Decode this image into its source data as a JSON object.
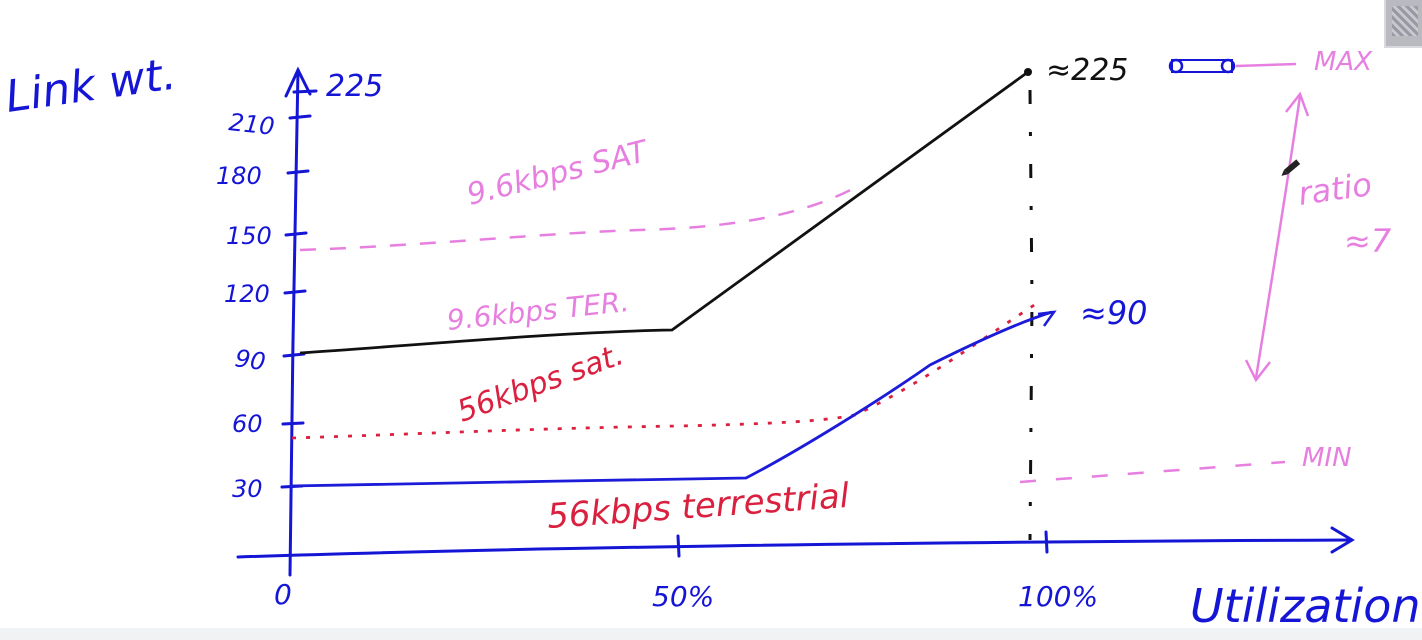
{
  "colors": {
    "axis": "#1515d6",
    "black": "#111111",
    "pink": "#e77fe0",
    "red": "#d9213f",
    "blue": "#1b1bd9"
  },
  "labels": {
    "y_title": "Link wt.",
    "x_title": "Utilization",
    "top_label": "225",
    "max": "MAX",
    "min": "MIN",
    "ratio": "ratio",
    "ratio_value": "≈7",
    "approx_225": "≈225",
    "approx_90": "≈90"
  },
  "chart_data": {
    "type": "line",
    "xlabel": "Utilization",
    "ylabel": "Link wt.",
    "x_ticks": [
      "0",
      "50%",
      "100%"
    ],
    "y_ticks": [
      "30",
      "60",
      "90",
      "120",
      "150",
      "180",
      "210"
    ],
    "ylim": [
      0,
      225
    ],
    "series": [
      {
        "name": "9.6kbps SAT",
        "style": "pink-dashed",
        "points": [
          [
            0,
            140
          ],
          [
            50,
            150
          ],
          [
            75,
            158
          ],
          [
            100,
            165
          ]
        ]
      },
      {
        "name": "9.6kbps TER.",
        "style": "black-solid",
        "points": [
          [
            0,
            90
          ],
          [
            50,
            95
          ],
          [
            100,
            225
          ]
        ]
      },
      {
        "name": "56kbps sat.",
        "style": "red-dotted",
        "points": [
          [
            0,
            50
          ],
          [
            50,
            56
          ],
          [
            75,
            60
          ],
          [
            100,
            112
          ]
        ]
      },
      {
        "name": "56kbps terrestrial",
        "style": "blue-solid",
        "points": [
          [
            0,
            30
          ],
          [
            60,
            32
          ],
          [
            100,
            108
          ]
        ]
      }
    ]
  }
}
